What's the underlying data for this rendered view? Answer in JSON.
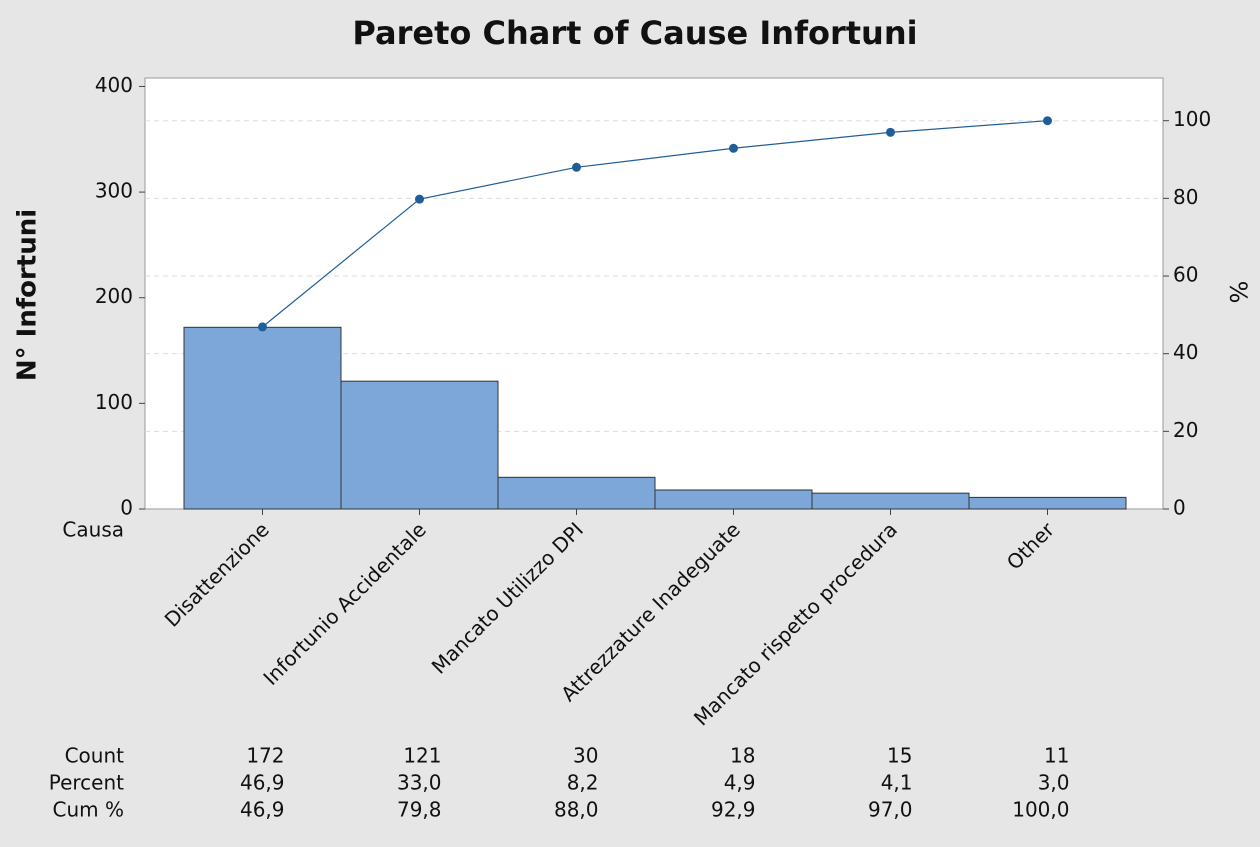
{
  "chart_data": {
    "type": "pareto",
    "title": "Pareto Chart of Cause Infortuni",
    "ylabel": "N° Infortuni",
    "y2label": "%",
    "xlabel": "Causa",
    "categories": [
      "Disattenzione",
      "Infortunio Accidentale",
      "Mancato Utilizzo DPI",
      "Attrezzature Inadeguate",
      "Mancato rispetto procedura",
      "Other"
    ],
    "series": [
      {
        "name": "Count",
        "color": "#7da7d9",
        "values": [
          172,
          121,
          30,
          18,
          15,
          11
        ]
      },
      {
        "name": "Percent",
        "values": [
          46.9,
          33.0,
          8.2,
          4.9,
          4.1,
          3.0
        ],
        "value_labels": [
          "46,9",
          "33,0",
          "8,2",
          "4,9",
          "4,1",
          "3,0"
        ]
      },
      {
        "name": "Cum %",
        "color": "#1f5e99",
        "axis": "y2",
        "values": [
          46.9,
          79.8,
          88.0,
          92.9,
          97.0,
          100.0
        ],
        "value_labels": [
          "46,9",
          "79,8",
          "88,0",
          "92,9",
          "97,0",
          "100,0"
        ]
      }
    ],
    "ylim": [
      0,
      408
    ],
    "yticks": [
      0,
      100,
      200,
      300,
      400
    ],
    "y2lim": [
      0,
      111
    ],
    "y2ticks": [
      0,
      20,
      40,
      60,
      80,
      100
    ],
    "grid": true
  }
}
